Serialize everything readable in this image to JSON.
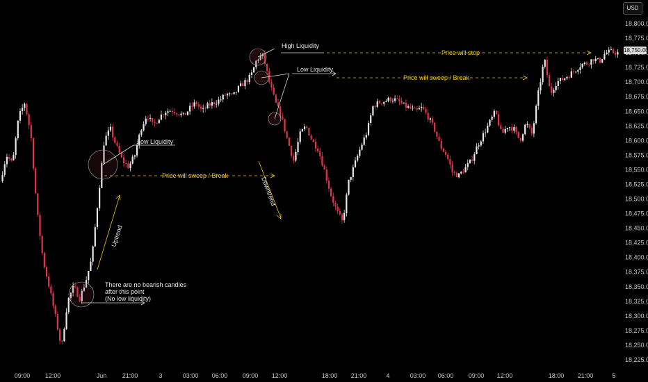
{
  "currency": "USD",
  "last_price_label": "18,750.00",
  "chart_data": {
    "type": "candlestick",
    "y_ticks": [
      "18,800.00",
      "18,775.00",
      "18,750.00",
      "18,725.00",
      "18,700.00",
      "18,675.00",
      "18,650.00",
      "18,625.00",
      "18,600.00",
      "18,575.00",
      "18,550.00",
      "18,525.00",
      "18,500.00",
      "18,475.00",
      "18,450.00",
      "18,425.00",
      "18,400.00",
      "18,375.00",
      "18,350.00",
      "18,325.00",
      "18,300.00",
      "18,275.00",
      "18,250.00",
      "18,225.00"
    ],
    "x_ticks": [
      "09:00",
      "12:00",
      "Jun",
      "21:00",
      "3",
      "03:00",
      "06:00",
      "09:00",
      "12:00",
      "18:00",
      "21:00",
      "4",
      "03:00",
      "06:00",
      "09:00",
      "12:00",
      "18:00",
      "21:00",
      "5"
    ],
    "ylim": [
      18220,
      18810
    ],
    "colors": {
      "up": "#e8e8e8",
      "down": "#e2344a",
      "annotation": "#f0c419",
      "text": "#e6e6e6"
    },
    "annotations": {
      "high_liquidity": "High Liquidity",
      "low_liquidity_1": "Low Liquidity",
      "low_liquidity_2": "Low Liquidity",
      "price_will_stop": "Price will stop",
      "sweep_break_1": "Price will sweep / Break",
      "sweep_break_2": "Price will sweep / Break",
      "uptrend": "Uptrend",
      "downtrend": "Downtrend",
      "no_bearish_1": "There are no bearish candles",
      "no_bearish_2": "after this point",
      "no_bearish_3": "(No low liquidity)"
    },
    "anchor_prices": [
      [
        18530,
        18575,
        18560,
        18640,
        18665,
        18610,
        18480,
        18395,
        18350,
        18300,
        18245,
        18325,
        18350,
        18330,
        18360,
        18400,
        18500,
        18600,
        18620,
        18590,
        18565,
        18555,
        18575,
        18620,
        18645,
        18625,
        18640,
        18650,
        18652,
        18648,
        18642,
        18655,
        18665,
        18650,
        18660,
        18665,
        18670,
        18680,
        18675,
        18690,
        18700,
        18710,
        18740,
        18745,
        18700,
        18665,
        18640,
        18600,
        18565,
        18610,
        18625,
        18600,
        18585,
        18550,
        18510,
        18480,
        18460,
        18530,
        18560,
        18590,
        18615,
        18660,
        18665,
        18668,
        18672,
        18668,
        18660,
        18655,
        18650,
        18656,
        18640,
        18620,
        18590,
        18575,
        18545,
        18540,
        18552,
        18565,
        18590,
        18610,
        18630,
        18650,
        18610,
        18625,
        18620,
        18600,
        18630,
        18610,
        18680,
        18740,
        18680,
        18700,
        18705,
        18712,
        18720,
        18730,
        18732,
        18740,
        18735,
        18750,
        18752,
        18750
      ]
    ]
  }
}
